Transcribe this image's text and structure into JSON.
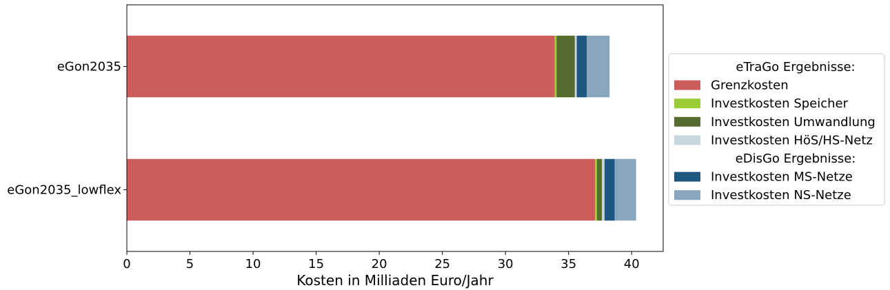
{
  "chart_data": {
    "type": "bar",
    "orientation": "horizontal",
    "stacked": true,
    "categories": [
      "eGon2035",
      "eGon2035_lowflex"
    ],
    "series": [
      {
        "name": "Grenzkosten",
        "color": "#cd5c5c",
        "values": [
          33.9,
          37.1
        ]
      },
      {
        "name": "Investkosten Speicher",
        "color": "#9acd32",
        "values": [
          0.15,
          0.15
        ]
      },
      {
        "name": "Investkosten Umwandlung",
        "color": "#556b2f",
        "values": [
          1.45,
          0.4
        ]
      },
      {
        "name": "Investkosten HöS/HS-Netz",
        "color": "#c8d6e0",
        "values": [
          0.15,
          0.2
        ]
      },
      {
        "name": "Investkosten MS-Netze",
        "color": "#1f5780",
        "values": [
          0.8,
          0.8
        ]
      },
      {
        "name": "Investkosten NS-Netze",
        "color": "#87a5bc",
        "values": [
          1.8,
          1.7
        ]
      }
    ],
    "xlabel": "Kosten in Milliaden Euro/Jahr",
    "xlim": [
      0,
      42.5
    ],
    "xticks": [
      0,
      5,
      10,
      15,
      20,
      25,
      30,
      35,
      40
    ],
    "grid": false,
    "legend": {
      "placement": "right",
      "headers": {
        "etrago": "eTraGo Ergebnisse:",
        "edisgo": "eDisGo Ergebnisse:"
      },
      "groups": [
        {
          "header": "etrago",
          "series": [
            0,
            1,
            2,
            3
          ]
        },
        {
          "header": "edisgo",
          "series": [
            4,
            5
          ]
        }
      ]
    }
  }
}
